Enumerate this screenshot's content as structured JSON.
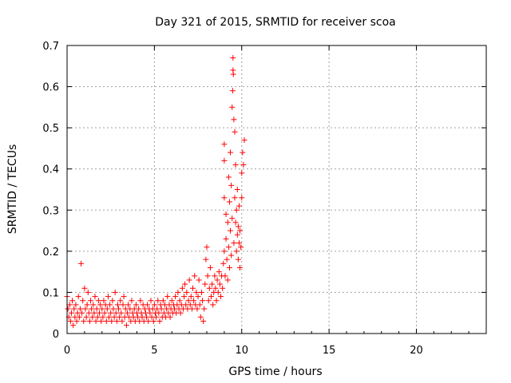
{
  "chart_data": {
    "type": "scatter",
    "title": "Day 321 of 2015, SRMTID for receiver scoa",
    "xlabel": "GPS time / hours",
    "ylabel": "SRMTID / TECUs",
    "xlim": [
      0,
      24
    ],
    "ylim": [
      0,
      0.7
    ],
    "x_ticks": [
      0,
      5,
      10,
      15,
      20
    ],
    "x_tick_labels": [
      "0",
      "5",
      "10",
      "15",
      "20"
    ],
    "y_ticks": [
      0,
      0.1,
      0.2,
      0.3,
      0.4,
      0.5,
      0.6,
      0.7
    ],
    "y_tick_labels": [
      "0",
      "0.1",
      "0.2",
      "0.3",
      "0.4",
      "0.5",
      "0.6",
      "0.7"
    ],
    "grid": true,
    "marker": "plus",
    "series": [
      {
        "name": "SRMTID",
        "color": "#ff0000",
        "points": [
          [
            0.0,
            0.09
          ],
          [
            0.05,
            0.06
          ],
          [
            0.1,
            0.04
          ],
          [
            0.15,
            0.07
          ],
          [
            0.2,
            0.03
          ],
          [
            0.25,
            0.05
          ],
          [
            0.3,
            0.08
          ],
          [
            0.35,
            0.02
          ],
          [
            0.4,
            0.06
          ],
          [
            0.45,
            0.04
          ],
          [
            0.5,
            0.07
          ],
          [
            0.55,
            0.03
          ],
          [
            0.6,
            0.05
          ],
          [
            0.65,
            0.09
          ],
          [
            0.7,
            0.04
          ],
          [
            0.75,
            0.06
          ],
          [
            0.8,
            0.17
          ],
          [
            0.85,
            0.05
          ],
          [
            0.9,
            0.08
          ],
          [
            0.95,
            0.03
          ],
          [
            1.0,
            0.11
          ],
          [
            1.05,
            0.06
          ],
          [
            1.1,
            0.04
          ],
          [
            1.15,
            0.07
          ],
          [
            1.2,
            0.1
          ],
          [
            1.25,
            0.05
          ],
          [
            1.3,
            0.03
          ],
          [
            1.35,
            0.08
          ],
          [
            1.4,
            0.06
          ],
          [
            1.45,
            0.04
          ],
          [
            1.5,
            0.07
          ],
          [
            1.55,
            0.05
          ],
          [
            1.6,
            0.09
          ],
          [
            1.65,
            0.03
          ],
          [
            1.7,
            0.06
          ],
          [
            1.75,
            0.04
          ],
          [
            1.8,
            0.08
          ],
          [
            1.85,
            0.05
          ],
          [
            1.9,
            0.07
          ],
          [
            1.95,
            0.03
          ],
          [
            2.0,
            0.06
          ],
          [
            2.05,
            0.04
          ],
          [
            2.1,
            0.08
          ],
          [
            2.15,
            0.05
          ],
          [
            2.2,
            0.07
          ],
          [
            2.25,
            0.03
          ],
          [
            2.3,
            0.06
          ],
          [
            2.35,
            0.09
          ],
          [
            2.4,
            0.04
          ],
          [
            2.45,
            0.07
          ],
          [
            2.5,
            0.05
          ],
          [
            2.55,
            0.03
          ],
          [
            2.6,
            0.08
          ],
          [
            2.65,
            0.06
          ],
          [
            2.7,
            0.04
          ],
          [
            2.75,
            0.1
          ],
          [
            2.8,
            0.05
          ],
          [
            2.85,
            0.03
          ],
          [
            2.9,
            0.07
          ],
          [
            2.95,
            0.06
          ],
          [
            3.0,
            0.04
          ],
          [
            3.05,
            0.08
          ],
          [
            3.1,
            0.05
          ],
          [
            3.15,
            0.03
          ],
          [
            3.2,
            0.07
          ],
          [
            3.25,
            0.09
          ],
          [
            3.3,
            0.04
          ],
          [
            3.35,
            0.06
          ],
          [
            3.4,
            0.02
          ],
          [
            3.45,
            0.05
          ],
          [
            3.5,
            0.07
          ],
          [
            3.55,
            0.04
          ],
          [
            3.6,
            0.06
          ],
          [
            3.65,
            0.03
          ],
          [
            3.7,
            0.08
          ],
          [
            3.75,
            0.05
          ],
          [
            3.8,
            0.04
          ],
          [
            3.85,
            0.06
          ],
          [
            3.9,
            0.03
          ],
          [
            3.95,
            0.07
          ],
          [
            4.0,
            0.05
          ],
          [
            4.05,
            0.04
          ],
          [
            4.1,
            0.06
          ],
          [
            4.15,
            0.03
          ],
          [
            4.2,
            0.08
          ],
          [
            4.25,
            0.05
          ],
          [
            4.3,
            0.04
          ],
          [
            4.35,
            0.07
          ],
          [
            4.4,
            0.03
          ],
          [
            4.45,
            0.06
          ],
          [
            4.5,
            0.05
          ],
          [
            4.55,
            0.04
          ],
          [
            4.6,
            0.07
          ],
          [
            4.65,
            0.03
          ],
          [
            4.7,
            0.06
          ],
          [
            4.75,
            0.05
          ],
          [
            4.8,
            0.08
          ],
          [
            4.85,
            0.04
          ],
          [
            4.9,
            0.06
          ],
          [
            4.95,
            0.03
          ],
          [
            5.0,
            0.07
          ],
          [
            5.05,
            0.05
          ],
          [
            5.1,
            0.04
          ],
          [
            5.15,
            0.06
          ],
          [
            5.2,
            0.08
          ],
          [
            5.25,
            0.05
          ],
          [
            5.3,
            0.03
          ],
          [
            5.35,
            0.07
          ],
          [
            5.4,
            0.06
          ],
          [
            5.45,
            0.04
          ],
          [
            5.5,
            0.08
          ],
          [
            5.55,
            0.05
          ],
          [
            5.6,
            0.07
          ],
          [
            5.65,
            0.04
          ],
          [
            5.7,
            0.06
          ],
          [
            5.75,
            0.09
          ],
          [
            5.8,
            0.05
          ],
          [
            5.85,
            0.07
          ],
          [
            5.9,
            0.04
          ],
          [
            5.95,
            0.06
          ],
          [
            6.0,
            0.08
          ],
          [
            6.05,
            0.05
          ],
          [
            6.1,
            0.07
          ],
          [
            6.15,
            0.06
          ],
          [
            6.2,
            0.09
          ],
          [
            6.25,
            0.05
          ],
          [
            6.3,
            0.07
          ],
          [
            6.35,
            0.1
          ],
          [
            6.4,
            0.06
          ],
          [
            6.45,
            0.08
          ],
          [
            6.5,
            0.05
          ],
          [
            6.55,
            0.07
          ],
          [
            6.6,
            0.11
          ],
          [
            6.65,
            0.06
          ],
          [
            6.7,
            0.09
          ],
          [
            6.75,
            0.12
          ],
          [
            6.8,
            0.07
          ],
          [
            6.85,
            0.1
          ],
          [
            6.9,
            0.06
          ],
          [
            6.95,
            0.08
          ],
          [
            7.0,
            0.13
          ],
          [
            7.05,
            0.07
          ],
          [
            7.1,
            0.09
          ],
          [
            7.15,
            0.06
          ],
          [
            7.2,
            0.11
          ],
          [
            7.25,
            0.08
          ],
          [
            7.3,
            0.14
          ],
          [
            7.35,
            0.07
          ],
          [
            7.4,
            0.1
          ],
          [
            7.45,
            0.06
          ],
          [
            7.5,
            0.09
          ],
          [
            7.55,
            0.13
          ],
          [
            7.6,
            0.07
          ],
          [
            7.65,
            0.04
          ],
          [
            7.7,
            0.1
          ],
          [
            7.75,
            0.08
          ],
          [
            7.8,
            0.03
          ],
          [
            7.85,
            0.06
          ],
          [
            7.9,
            0.12
          ],
          [
            7.95,
            0.18
          ],
          [
            8.0,
            0.21
          ],
          [
            8.05,
            0.14
          ],
          [
            8.1,
            0.08
          ],
          [
            8.15,
            0.11
          ],
          [
            8.2,
            0.16
          ],
          [
            8.25,
            0.09
          ],
          [
            8.3,
            0.12
          ],
          [
            8.35,
            0.07
          ],
          [
            8.4,
            0.1
          ],
          [
            8.45,
            0.14
          ],
          [
            8.5,
            0.11
          ],
          [
            8.55,
            0.08
          ],
          [
            8.6,
            0.13
          ],
          [
            8.65,
            0.1
          ],
          [
            8.7,
            0.15
          ],
          [
            8.75,
            0.12
          ],
          [
            8.8,
            0.09
          ],
          [
            8.85,
            0.14
          ],
          [
            8.9,
            0.11
          ],
          [
            8.95,
            0.17
          ],
          [
            9.0,
            0.2
          ],
          [
            9.0,
            0.33
          ],
          [
            9.0,
            0.42
          ],
          [
            9.0,
            0.46
          ],
          [
            9.05,
            0.14
          ],
          [
            9.1,
            0.23
          ],
          [
            9.1,
            0.29
          ],
          [
            9.15,
            0.18
          ],
          [
            9.2,
            0.13
          ],
          [
            9.2,
            0.27
          ],
          [
            9.25,
            0.21
          ],
          [
            9.25,
            0.38
          ],
          [
            9.3,
            0.16
          ],
          [
            9.3,
            0.32
          ],
          [
            9.35,
            0.25
          ],
          [
            9.35,
            0.44
          ],
          [
            9.4,
            0.19
          ],
          [
            9.4,
            0.36
          ],
          [
            9.45,
            0.28
          ],
          [
            9.45,
            0.55
          ],
          [
            9.48,
            0.59
          ],
          [
            9.5,
            0.67
          ],
          [
            9.5,
            0.64
          ],
          [
            9.52,
            0.63
          ],
          [
            9.55,
            0.52
          ],
          [
            9.55,
            0.22
          ],
          [
            9.6,
            0.33
          ],
          [
            9.6,
            0.49
          ],
          [
            9.65,
            0.27
          ],
          [
            9.65,
            0.41
          ],
          [
            9.7,
            0.3
          ],
          [
            9.7,
            0.2
          ],
          [
            9.75,
            0.24
          ],
          [
            9.75,
            0.35
          ],
          [
            9.8,
            0.18
          ],
          [
            9.8,
            0.26
          ],
          [
            9.85,
            0.22
          ],
          [
            9.85,
            0.31
          ],
          [
            9.9,
            0.16
          ],
          [
            9.9,
            0.25
          ],
          [
            9.95,
            0.21
          ],
          [
            10.0,
            0.33
          ],
          [
            10.0,
            0.39
          ],
          [
            10.05,
            0.44
          ],
          [
            10.1,
            0.41
          ],
          [
            10.15,
            0.47
          ]
        ]
      }
    ]
  }
}
